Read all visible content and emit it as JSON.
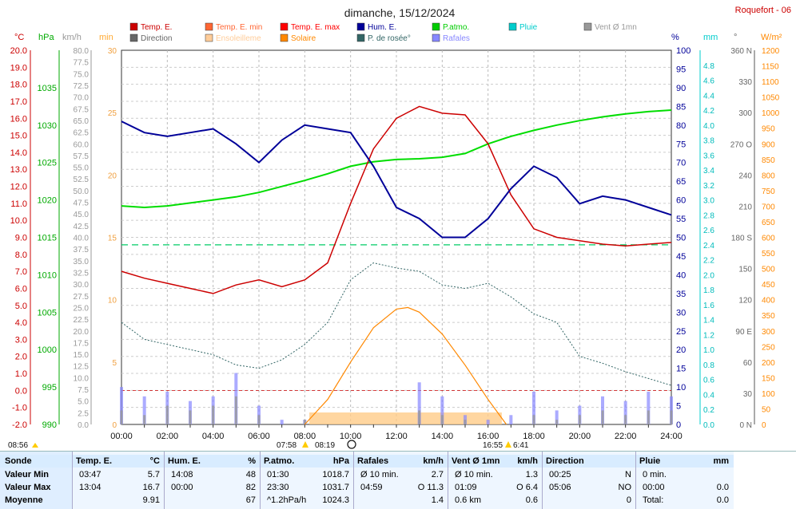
{
  "title": "dimanche, 15/12/2024",
  "station": "Roquefort - 06",
  "legend": [
    {
      "label": "Temp. E.",
      "color": "#cc0000"
    },
    {
      "label": "Temp. E. min",
      "color": "#ff6633"
    },
    {
      "label": "Temp. E. max",
      "color": "#ff0000"
    },
    {
      "label": "Hum. E.",
      "color": "#000099"
    },
    {
      "label": "P.atmo.",
      "color": "#00cc00"
    },
    {
      "label": "Pluie",
      "color": "#00cccc"
    },
    {
      "label": "Vent Ø 1mn",
      "color": "#999999"
    },
    {
      "label": "Direction",
      "color": "#666666"
    },
    {
      "label": "Ensoleilleme",
      "color": "#ffcc99"
    },
    {
      "label": "Solaire",
      "color": "#ff8800"
    },
    {
      "label": "P. de rosée°",
      "color": "#336666"
    },
    {
      "label": "Rafales",
      "color": "#8888ff"
    }
  ],
  "axis_units": {
    "temp": "°C",
    "pressure": "hPa",
    "wind": "km/h",
    "min": "min",
    "hum": "%",
    "rain": "mm",
    "dir": "°",
    "solar": "W/m²"
  },
  "colors": {
    "temp": "#cc0000",
    "pressure": "#00aa00",
    "wind": "#999999",
    "min": "#ffaa33",
    "hum": "#000099",
    "rain": "#00cccc",
    "dir": "#666666",
    "solar": "#ff8800",
    "sunshine": "#ffcc88",
    "dew": "#336666",
    "gust": "#8888ff"
  },
  "sun_events": {
    "left": "08:56",
    "sunrise": "07:58",
    "sunrise2": "08:19",
    "sunset": "16:55",
    "sunset2": "6:41"
  },
  "chart_data": {
    "type": "line",
    "x_ticks": [
      "00:00",
      "02:00",
      "04:00",
      "06:00",
      "08:00",
      "10:00",
      "12:00",
      "14:00",
      "16:00",
      "18:00",
      "20:00",
      "22:00",
      "24:00"
    ],
    "temp_ticks": [
      "20.0",
      "19.0",
      "18.0",
      "17.0",
      "16.0",
      "15.0",
      "14.0",
      "13.0",
      "12.0",
      "11.0",
      "10.0",
      "9.0",
      "8.0",
      "7.0",
      "6.0",
      "5.0",
      "4.0",
      "3.0",
      "2.0",
      "1.0",
      "0.0",
      "-1.0",
      "-2.0"
    ],
    "pressure_ticks": [
      "1035",
      "1030",
      "1025",
      "1020",
      "1015",
      "1010",
      "1005",
      "1000",
      "995",
      "990"
    ],
    "wind_ticks": [
      "80.0",
      "77.5",
      "75.0",
      "72.5",
      "70.0",
      "67.5",
      "65.0",
      "62.5",
      "60.0",
      "57.5",
      "55.0",
      "52.5",
      "50.0",
      "47.5",
      "45.0",
      "42.5",
      "40.0",
      "37.5",
      "35.0",
      "32.5",
      "30.0",
      "27.5",
      "25.0",
      "22.5",
      "20.0",
      "17.5",
      "15.0",
      "12.5",
      "10.0",
      "7.5",
      "5.0",
      "2.5",
      "0.0"
    ],
    "min_ticks": [
      "30",
      "25",
      "20",
      "15",
      "10",
      "5",
      "0"
    ],
    "hum_ticks": [
      "100",
      "95",
      "90",
      "85",
      "80",
      "75",
      "70",
      "65",
      "60",
      "55",
      "50",
      "45",
      "40",
      "35",
      "30",
      "25",
      "20",
      "15",
      "10",
      "5",
      "0"
    ],
    "rain_ticks": [
      "4.8",
      "4.6",
      "4.4",
      "4.2",
      "4.0",
      "3.8",
      "3.6",
      "3.4",
      "3.2",
      "3.0",
      "2.8",
      "2.6",
      "2.4",
      "2.2",
      "2.0",
      "1.8",
      "1.6",
      "1.4",
      "1.2",
      "1.0",
      "0.8",
      "0.6",
      "0.4",
      "0.2",
      "0.0"
    ],
    "dir_ticks": [
      "360 N",
      "330",
      "300",
      "270 O",
      "240",
      "210",
      "180 S",
      "150",
      "120",
      "90 E",
      "60",
      "30",
      "0 N"
    ],
    "solar_ticks": [
      "1200",
      "1150",
      "1100",
      "1050",
      "1000",
      "950",
      "900",
      "850",
      "800",
      "750",
      "700",
      "650",
      "600",
      "550",
      "500",
      "450",
      "400",
      "350",
      "300",
      "250",
      "200",
      "150",
      "100",
      "50",
      "0"
    ],
    "series": [
      {
        "name": "Temp. E.",
        "unit": "°C",
        "x": [
          0,
          1,
          2,
          3,
          4,
          5,
          6,
          7,
          8,
          9,
          10,
          11,
          12,
          13,
          14,
          15,
          16,
          17,
          18,
          19,
          20,
          21,
          22,
          23,
          24
        ],
        "values": [
          7.0,
          6.6,
          6.3,
          6.0,
          5.7,
          6.2,
          6.5,
          6.1,
          6.5,
          7.5,
          11.0,
          14.2,
          16.0,
          16.7,
          16.3,
          16.2,
          14.5,
          11.5,
          9.5,
          9.0,
          8.8,
          8.6,
          8.5,
          8.6,
          8.7
        ]
      },
      {
        "name": "Hum. E.",
        "unit": "%",
        "x": [
          0,
          1,
          2,
          3,
          4,
          5,
          6,
          7,
          8,
          9,
          10,
          11,
          12,
          13,
          14,
          15,
          16,
          17,
          18,
          19,
          20,
          21,
          22,
          23,
          24
        ],
        "values": [
          81,
          78,
          77,
          78,
          79,
          75,
          70,
          76,
          80,
          79,
          78,
          69,
          58,
          55,
          50,
          50,
          55,
          63,
          69,
          66,
          59,
          61,
          60,
          58,
          56
        ]
      },
      {
        "name": "P.atmo.",
        "unit": "hPa",
        "x": [
          0,
          1,
          2,
          3,
          4,
          5,
          6,
          7,
          8,
          9,
          10,
          11,
          12,
          13,
          14,
          15,
          16,
          17,
          18,
          19,
          20,
          21,
          22,
          23,
          24
        ],
        "values": [
          1019.2,
          1019.0,
          1019.2,
          1019.6,
          1020.0,
          1020.4,
          1021.0,
          1021.8,
          1022.6,
          1023.5,
          1024.5,
          1025.1,
          1025.4,
          1025.5,
          1025.7,
          1026.2,
          1027.5,
          1028.5,
          1029.3,
          1030.0,
          1030.6,
          1031.1,
          1031.5,
          1031.8,
          1032.0
        ]
      },
      {
        "name": "P. de rosée°",
        "unit": "°C",
        "x": [
          0,
          1,
          2,
          3,
          4,
          5,
          6,
          7,
          8,
          9,
          10,
          11,
          12,
          13,
          14,
          15,
          16,
          17,
          18,
          19,
          20,
          21,
          22,
          23,
          24
        ],
        "values": [
          4.0,
          3.0,
          2.7,
          2.4,
          2.1,
          1.5,
          1.3,
          1.8,
          2.7,
          4.0,
          6.5,
          7.5,
          7.2,
          7.0,
          6.2,
          6.0,
          6.3,
          5.5,
          4.5,
          4.0,
          2.0,
          1.6,
          1.1,
          0.7,
          0.3
        ]
      },
      {
        "name": "Solaire",
        "unit": "W/m²",
        "x": [
          8,
          9,
          10,
          11,
          12,
          12.5,
          13,
          14,
          15,
          16,
          16.8
        ],
        "values": [
          0,
          80,
          200,
          310,
          370,
          375,
          360,
          290,
          190,
          80,
          0
        ]
      },
      {
        "name": "Vent Ø 1mn",
        "unit": "km/h",
        "x": [
          0,
          1,
          2,
          3,
          4,
          5,
          6,
          7,
          8,
          9,
          10,
          11,
          12,
          13,
          14,
          15,
          16,
          17,
          18,
          19,
          20,
          21,
          22,
          23,
          24
        ],
        "values": [
          3,
          2,
          4,
          3,
          4,
          6,
          2,
          0,
          1,
          0,
          0,
          0,
          0,
          3,
          2,
          1,
          0,
          0,
          2,
          1,
          2,
          3,
          2,
          3,
          3
        ]
      },
      {
        "name": "Rafales",
        "unit": "km/h",
        "x": [
          0,
          1,
          2,
          3,
          4,
          5,
          6,
          7,
          8,
          9,
          10,
          11,
          12,
          13,
          14,
          15,
          16,
          17,
          18,
          19,
          20,
          21,
          22,
          23,
          24
        ],
        "values": [
          8,
          6,
          7,
          5,
          6,
          11,
          4,
          1,
          1,
          0,
          0,
          0,
          0,
          9,
          6,
          2,
          1,
          2,
          7,
          3,
          4,
          6,
          5,
          7,
          6
        ]
      }
    ],
    "rain_line_mm": 2.4,
    "sunshine_window": [
      8.2,
      16.6
    ]
  },
  "summary": {
    "row_labels": [
      "Sonde",
      "Valeur Min",
      "Valeur Max",
      "Moyenne"
    ],
    "columns": [
      {
        "head": "Temp. E.",
        "unit": "°C",
        "rows": [
          [
            "03:47",
            "5.7"
          ],
          [
            "13:04",
            "16.7"
          ],
          [
            "",
            "9.91"
          ]
        ]
      },
      {
        "head": "Hum. E.",
        "unit": "%",
        "rows": [
          [
            "14:08",
            "48"
          ],
          [
            "00:00",
            "82"
          ],
          [
            "",
            "67"
          ]
        ]
      },
      {
        "head": "P.atmo.",
        "unit": "hPa",
        "rows": [
          [
            "01:30",
            "1018.7"
          ],
          [
            "23:30",
            "1031.7"
          ],
          [
            "^1.2hPa/h",
            "1024.3"
          ]
        ]
      },
      {
        "head": "Rafales",
        "unit": "km/h",
        "rows": [
          [
            "Ø 10 min.",
            "2.7"
          ],
          [
            "04:59",
            "O 11.3"
          ],
          [
            "",
            "1.4"
          ]
        ]
      },
      {
        "head": "Vent Ø 1mn",
        "unit": "km/h",
        "rows": [
          [
            "Ø 10 min.",
            "1.3"
          ],
          [
            "01:09",
            "O 6.4"
          ],
          [
            "0.6 km",
            "0.6"
          ]
        ]
      },
      {
        "head": "Direction",
        "unit": "",
        "rows": [
          [
            "00:25",
            "N"
          ],
          [
            "05:06",
            "NO"
          ],
          [
            "",
            "0"
          ]
        ]
      },
      {
        "head": "Pluie",
        "unit": "mm",
        "rows": [
          [
            "0 min.",
            ""
          ],
          [
            "00:00",
            "0.0"
          ],
          [
            "Total:",
            "0.0"
          ]
        ]
      }
    ]
  }
}
